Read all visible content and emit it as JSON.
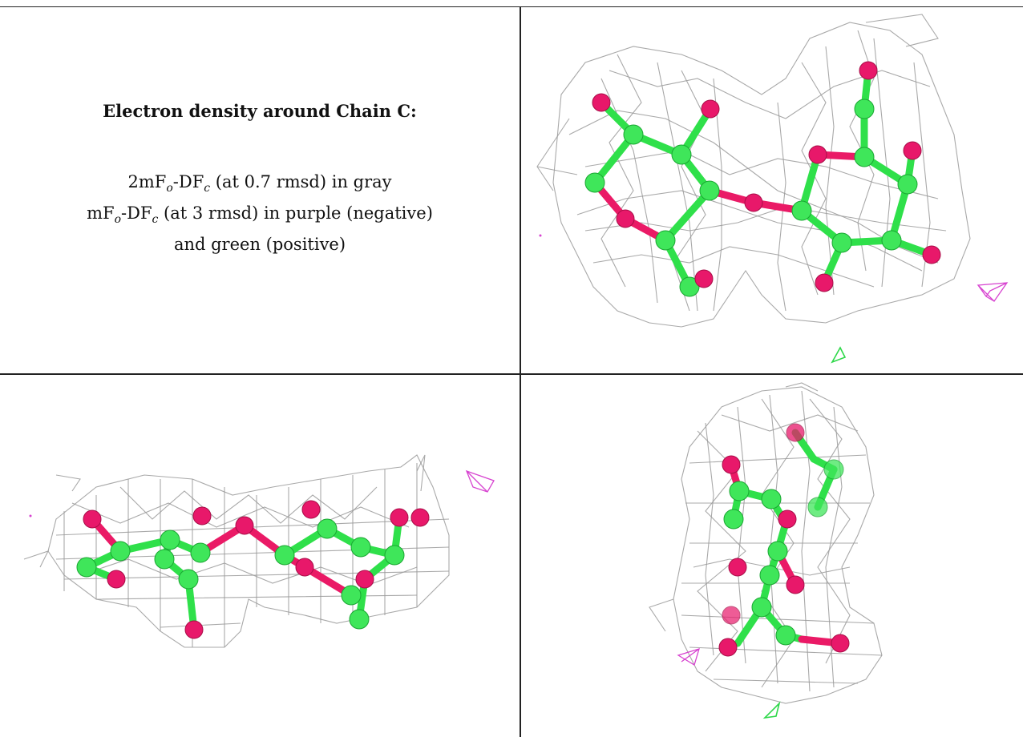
{
  "panel": {
    "title": "Electron density around Chain C:",
    "map_2fo": {
      "prefix": "2mF",
      "sub1": "o",
      "mid": "-DF",
      "sub2": "c",
      "suffix": " (at 0.7 rmsd) in gray"
    },
    "map_fo": {
      "prefix": "mF",
      "sub1": "o",
      "mid": "-DF",
      "sub2": "c",
      "suffix": " (at 3 rmsd) in purple (negative)"
    },
    "map_fo_cont": "and green (positive)"
  },
  "colors": {
    "mesh_2fo_dfc": "#9a9a9a",
    "carbon": "#3fe65a",
    "oxygen": "#e8186a",
    "negative_density": "#d743d0",
    "positive_density": "#2fd84a"
  },
  "views": [
    "top-view",
    "side-view",
    "end-view"
  ]
}
